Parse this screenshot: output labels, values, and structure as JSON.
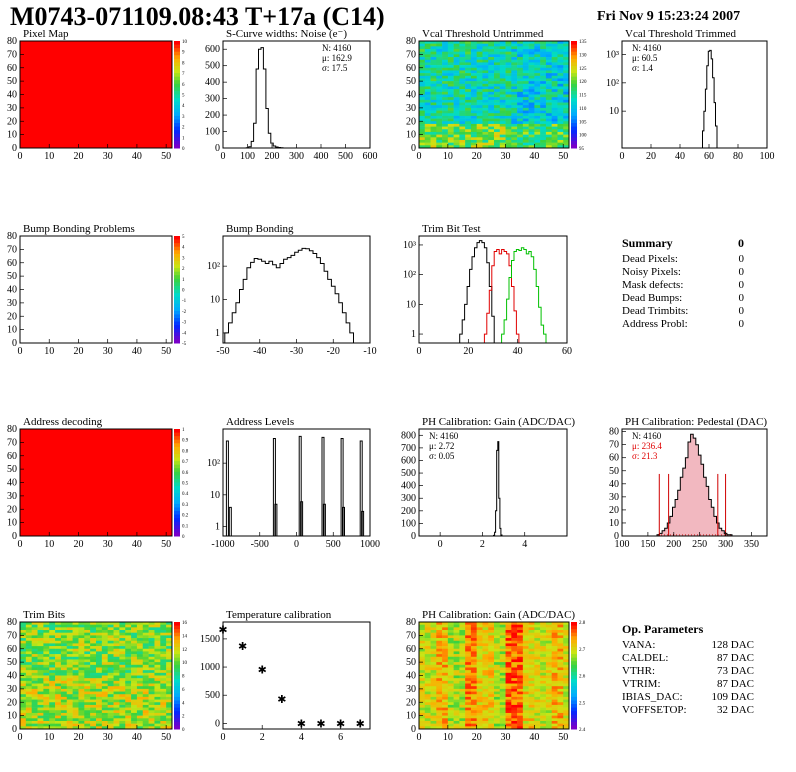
{
  "header": {
    "title": "M0743-071109.08:43 T+17a (C14)",
    "date": "Fri Nov  9 15:23:24 2007"
  },
  "chart_data": [
    {
      "id": "pixel_map",
      "type": "heatmap",
      "title": "Pixel Map",
      "xlim": [
        0,
        52
      ],
      "ylim": [
        0,
        80
      ],
      "xticks": [
        "0",
        "10",
        "20",
        "30",
        "40",
        "50"
      ],
      "yticks": [
        "0",
        "10",
        "20",
        "30",
        "40",
        "50",
        "60",
        "70",
        "80"
      ],
      "fill": "uniform-red",
      "palette": {
        "ticks": [
          "0",
          "1",
          "2",
          "3",
          "4",
          "5",
          "6",
          "7",
          "8",
          "9",
          "10"
        ]
      }
    },
    {
      "id": "scurve",
      "type": "histogram",
      "title": "S-Curve widths: Noise (e⁻)",
      "xlim": [
        0,
        600
      ],
      "ylim": [
        0,
        650
      ],
      "xticks": [
        "0",
        "100",
        "200",
        "300",
        "400",
        "500",
        "600"
      ],
      "yticks": [
        "0",
        "100",
        "200",
        "300",
        "400",
        "500",
        "600"
      ],
      "stats": [
        "N: 4160",
        "μ: 162.9",
        "σ: 17.5"
      ],
      "bins_x": [
        100,
        110,
        120,
        130,
        140,
        150,
        160,
        170,
        180,
        190,
        200,
        210,
        220,
        230,
        240
      ],
      "bins_y": [
        2,
        8,
        40,
        150,
        480,
        600,
        610,
        480,
        240,
        90,
        30,
        12,
        6,
        3,
        1
      ]
    },
    {
      "id": "vcal_untrimmed",
      "type": "heatmap",
      "title": "Vcal Threshold Untrimmed",
      "xlim": [
        0,
        52
      ],
      "ylim": [
        0,
        80
      ],
      "xticks": [
        "0",
        "10",
        "20",
        "30",
        "40",
        "50"
      ],
      "yticks": [
        "0",
        "10",
        "20",
        "30",
        "40",
        "50",
        "60",
        "70",
        "80"
      ],
      "fill": "noisy-cyan",
      "palette": {
        "ticks": [
          "95",
          "100",
          "105",
          "110",
          "115",
          "120",
          "125",
          "130",
          "135"
        ]
      }
    },
    {
      "id": "vcal_trimmed",
      "type": "histogram",
      "title": "Vcal Threshold Trimmed",
      "xlim": [
        0,
        100
      ],
      "log_y": true,
      "ylim": [
        0.5,
        3000
      ],
      "xticks": [
        "0",
        "20",
        "40",
        "60",
        "80",
        "100"
      ],
      "yticks": [
        "10",
        "10²",
        "10³"
      ],
      "stats": [
        "N: 4160",
        "μ: 60.5",
        "σ: 1.4"
      ],
      "bins_x": [
        56,
        57,
        58,
        59,
        60,
        61,
        62,
        63,
        64,
        65
      ],
      "bins_y": [
        2,
        10,
        60,
        400,
        1300,
        1400,
        700,
        150,
        20,
        3
      ]
    },
    {
      "id": "bump_problems",
      "type": "heatmap",
      "title": "Bump Bonding Problems",
      "xlim": [
        0,
        52
      ],
      "ylim": [
        0,
        80
      ],
      "xticks": [
        "0",
        "10",
        "20",
        "30",
        "40",
        "50"
      ],
      "yticks": [
        "0",
        "10",
        "20",
        "30",
        "40",
        "50",
        "60",
        "70",
        "80"
      ],
      "fill": "empty",
      "palette": {
        "ticks": [
          "-5",
          "-4",
          "-3",
          "-2",
          "-1",
          "0",
          "1",
          "2",
          "3",
          "4",
          "5"
        ]
      }
    },
    {
      "id": "bump_bonding",
      "type": "histogram",
      "title": "Bump Bonding",
      "xlim": [
        -50,
        -10
      ],
      "log_y": true,
      "ylim": [
        0.5,
        800
      ],
      "xticks": [
        "-50",
        "-40",
        "-30",
        "-20",
        "-10"
      ],
      "yticks": [
        "1",
        "10",
        "10²"
      ],
      "bins_x": [
        -49,
        -48,
        -47,
        -46,
        -45,
        -44,
        -43,
        -42,
        -41,
        -40,
        -39,
        -38,
        -37,
        -36,
        -35,
        -34,
        -33,
        -32,
        -31,
        -30,
        -29,
        -28,
        -27,
        -26,
        -25,
        -24,
        -23,
        -22,
        -21,
        -20,
        -19,
        -18,
        -17,
        -16,
        -15
      ],
      "bins_y": [
        1,
        2,
        4,
        8,
        20,
        40,
        90,
        130,
        170,
        160,
        140,
        120,
        140,
        110,
        90,
        120,
        160,
        180,
        210,
        260,
        300,
        340,
        330,
        290,
        240,
        180,
        120,
        70,
        40,
        25,
        15,
        8,
        4,
        2,
        1
      ]
    },
    {
      "id": "trim_bit_test",
      "type": "histogram",
      "title": "Trim Bit Test",
      "xlim": [
        0,
        60
      ],
      "log_y": true,
      "ylim": [
        0.5,
        2000
      ],
      "xticks": [
        "0",
        "20",
        "40",
        "60"
      ],
      "yticks": [
        "1",
        "10",
        "10²",
        "10³"
      ],
      "series": [
        {
          "name": "",
          "color": "#000000",
          "bins_x": [
            17,
            18,
            19,
            20,
            21,
            22,
            23,
            24,
            25,
            26,
            27,
            28,
            29,
            30
          ],
          "bins_y": [
            1,
            3,
            10,
            40,
            150,
            400,
            800,
            1200,
            1400,
            1200,
            800,
            250,
            40,
            4
          ]
        },
        {
          "name": "",
          "color": "#e00000",
          "bins_x": [
            27,
            28,
            29,
            30,
            31,
            32,
            33,
            34,
            35,
            36,
            37,
            38,
            39,
            40
          ],
          "bins_y": [
            1,
            5,
            30,
            200,
            600,
            700,
            500,
            700,
            600,
            500,
            200,
            40,
            6,
            1
          ]
        },
        {
          "name": "",
          "color": "#00c000",
          "bins_x": [
            34,
            35,
            36,
            37,
            38,
            39,
            40,
            41,
            42,
            43,
            44,
            45,
            46,
            47,
            48,
            49,
            50,
            51
          ],
          "bins_y": [
            1,
            3,
            15,
            80,
            300,
            600,
            700,
            650,
            800,
            700,
            500,
            600,
            400,
            150,
            40,
            8,
            2,
            1
          ]
        }
      ]
    },
    {
      "id": "address_decoding",
      "type": "heatmap",
      "title": "Address decoding",
      "xlim": [
        0,
        52
      ],
      "ylim": [
        0,
        80
      ],
      "xticks": [
        "0",
        "10",
        "20",
        "30",
        "40",
        "50"
      ],
      "yticks": [
        "0",
        "10",
        "20",
        "30",
        "40",
        "50",
        "60",
        "70",
        "80"
      ],
      "fill": "uniform-red",
      "palette": {
        "ticks": [
          "0",
          "0.1",
          "0.2",
          "0.3",
          "0.4",
          "0.5",
          "0.6",
          "0.7",
          "0.8",
          "0.9",
          "1"
        ]
      }
    },
    {
      "id": "address_levels",
      "type": "histogram",
      "title": "Address Levels",
      "xlim": [
        -1000,
        1000
      ],
      "log_y": true,
      "ylim": [
        0.5,
        1200
      ],
      "xticks": [
        "-1000",
        "-500",
        "0",
        "500",
        "1000"
      ],
      "yticks": [
        "1",
        "10",
        "10²"
      ],
      "peaks": [
        {
          "x": -940,
          "y": 500
        },
        {
          "x": -900,
          "y": 4
        },
        {
          "x": -300,
          "y": 600
        },
        {
          "x": -280,
          "y": 5
        },
        {
          "x": 50,
          "y": 700
        },
        {
          "x": 70,
          "y": 6
        },
        {
          "x": 360,
          "y": 650
        },
        {
          "x": 380,
          "y": 5
        },
        {
          "x": 620,
          "y": 600
        },
        {
          "x": 640,
          "y": 4
        },
        {
          "x": 880,
          "y": 500
        },
        {
          "x": 900,
          "y": 3
        }
      ]
    },
    {
      "id": "ph_gain",
      "type": "histogram",
      "title": "PH Calibration: Gain (ADC/DAC)",
      "xlim": [
        -1,
        6
      ],
      "ylim": [
        0,
        850
      ],
      "xticks": [
        "0",
        "2",
        "4"
      ],
      "yticks": [
        "0",
        "100",
        "200",
        "300",
        "400",
        "500",
        "600",
        "700",
        "800"
      ],
      "stats": [
        "N: 4160",
        "μ: 2.72",
        "σ: 0.05"
      ],
      "bins_x": [
        2.55,
        2.6,
        2.65,
        2.7,
        2.75,
        2.8,
        2.85,
        2.9
      ],
      "bins_y": [
        5,
        30,
        200,
        680,
        750,
        300,
        60,
        8
      ]
    },
    {
      "id": "ph_pedestal",
      "type": "histogram",
      "title": "PH Calibration: Pedestal (DAC)",
      "xlim": [
        100,
        380
      ],
      "ylim": [
        0,
        82
      ],
      "xticks": [
        "100",
        "150",
        "200",
        "250",
        "300",
        "350"
      ],
      "yticks": [
        "0",
        "10",
        "20",
        "30",
        "40",
        "50",
        "60",
        "70",
        "80"
      ],
      "stats": [
        "N: 4160",
        "μ: 236.4",
        "σ: 21.3"
      ],
      "cut_lines": [
        172,
        190,
        285,
        300
      ],
      "bins_x": [
        170,
        175,
        180,
        185,
        190,
        195,
        200,
        205,
        210,
        215,
        220,
        225,
        230,
        235,
        240,
        245,
        250,
        255,
        260,
        265,
        270,
        275,
        280,
        285,
        290,
        295,
        300,
        305,
        310
      ],
      "bins_y": [
        1,
        2,
        4,
        6,
        10,
        15,
        22,
        28,
        35,
        45,
        52,
        60,
        72,
        78,
        75,
        70,
        62,
        55,
        45,
        38,
        28,
        22,
        15,
        10,
        6,
        4,
        2,
        1,
        1
      ]
    },
    {
      "id": "trim_bits",
      "type": "heatmap",
      "title": "Trim Bits",
      "xlim": [
        0,
        52
      ],
      "ylim": [
        0,
        80
      ],
      "xticks": [
        "0",
        "10",
        "20",
        "30",
        "40",
        "50"
      ],
      "yticks": [
        "0",
        "10",
        "20",
        "30",
        "40",
        "50",
        "60",
        "70",
        "80"
      ],
      "fill": "noisy-green",
      "palette": {
        "ticks": [
          "0",
          "2",
          "4",
          "6",
          "8",
          "10",
          "12",
          "14",
          "16"
        ]
      }
    },
    {
      "id": "temp_calibration",
      "type": "scatter",
      "title": "Temperature calibration",
      "xlim": [
        0,
        7.5
      ],
      "ylim": [
        -100,
        1800
      ],
      "xticks": [
        "0",
        "2",
        "4",
        "6"
      ],
      "yticks": [
        "0",
        "500",
        "1000",
        "1500"
      ],
      "x": [
        0,
        1,
        2,
        3,
        4,
        5,
        6,
        7
      ],
      "y": [
        1670,
        1370,
        960,
        430,
        0,
        0,
        0,
        0
      ]
    },
    {
      "id": "ph_gain_map",
      "type": "heatmap",
      "title": "PH Calibration: Gain (ADC/DAC)",
      "xlim": [
        0,
        52
      ],
      "ylim": [
        0,
        80
      ],
      "xticks": [
        "0",
        "10",
        "20",
        "30",
        "40",
        "50"
      ],
      "yticks": [
        "0",
        "10",
        "20",
        "30",
        "40",
        "50",
        "60",
        "70",
        "80"
      ],
      "fill": "noisy-orange",
      "palette": {
        "ticks": [
          "2.4",
          "2.5",
          "2.6",
          "2.7",
          "2.8"
        ]
      }
    }
  ],
  "summary": {
    "title": "Summary",
    "total": "0",
    "rows": [
      {
        "label": "Dead Pixels:",
        "value": "0"
      },
      {
        "label": "Noisy Pixels:",
        "value": "0"
      },
      {
        "label": "Mask defects:",
        "value": "0"
      },
      {
        "label": "Dead Bumps:",
        "value": "0"
      },
      {
        "label": "Dead Trimbits:",
        "value": "0"
      },
      {
        "label": "Address Probl:",
        "value": "0"
      }
    ]
  },
  "op_params": {
    "title": "Op. Parameters",
    "rows": [
      {
        "label": "VANA:",
        "value": "128 DAC"
      },
      {
        "label": "CALDEL:",
        "value": "87 DAC"
      },
      {
        "label": "VTHR:",
        "value": "73 DAC"
      },
      {
        "label": "VTRIM:",
        "value": "87 DAC"
      },
      {
        "label": "IBIAS_DAC:",
        "value": "109 DAC"
      },
      {
        "label": "VOFFSETOP:",
        "value": "32 DAC"
      }
    ]
  }
}
